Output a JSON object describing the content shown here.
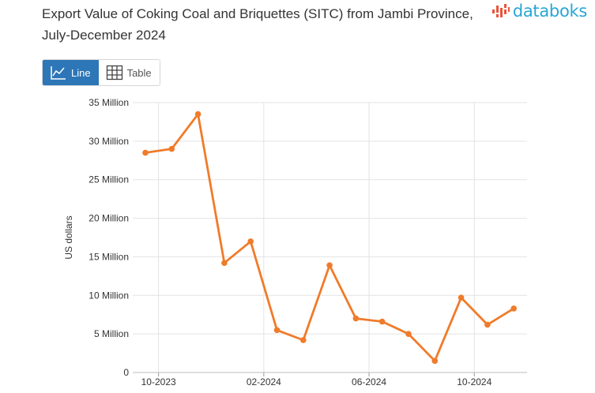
{
  "header": {
    "title": "Export Value of Coking Coal and Briquettes (SITC) from Jambi Province, July-December 2024",
    "brand": "databoks"
  },
  "view_toggle": {
    "line_label": "Line",
    "table_label": "Table",
    "selected": "Line"
  },
  "colors": {
    "series": "#f07b2a",
    "accent": "#2d76b7",
    "brand": "#29a6d6",
    "brand_mark": "#e8553d"
  },
  "chart_data": {
    "type": "line",
    "title": "Export Value of Coking Coal and Briquettes (SITC) from Jambi Province, July-December 2024",
    "xlabel": "",
    "ylabel": "US dollars",
    "ylim": [
      0,
      35000000
    ],
    "y_ticks": [
      0,
      5000000,
      10000000,
      15000000,
      20000000,
      25000000,
      30000000,
      35000000
    ],
    "y_tick_labels": [
      "0",
      "5 Million",
      "10 Million",
      "15 Million",
      "20 Million",
      "25 Million",
      "30 Million",
      "35 Million"
    ],
    "x_tick_labels": [
      "10-2023",
      "02-2024",
      "06-2024",
      "10-2024"
    ],
    "x_tick_indices": [
      0.5,
      4.5,
      8.5,
      12.5
    ],
    "grid": true,
    "legend": "none",
    "series": [
      {
        "name": "Export Value",
        "values": [
          28500000,
          29000000,
          33500000,
          14200000,
          17000000,
          5500000,
          4200000,
          13900000,
          7000000,
          6600000,
          5000000,
          1500000,
          9700000,
          6200000,
          8300000
        ]
      }
    ]
  }
}
